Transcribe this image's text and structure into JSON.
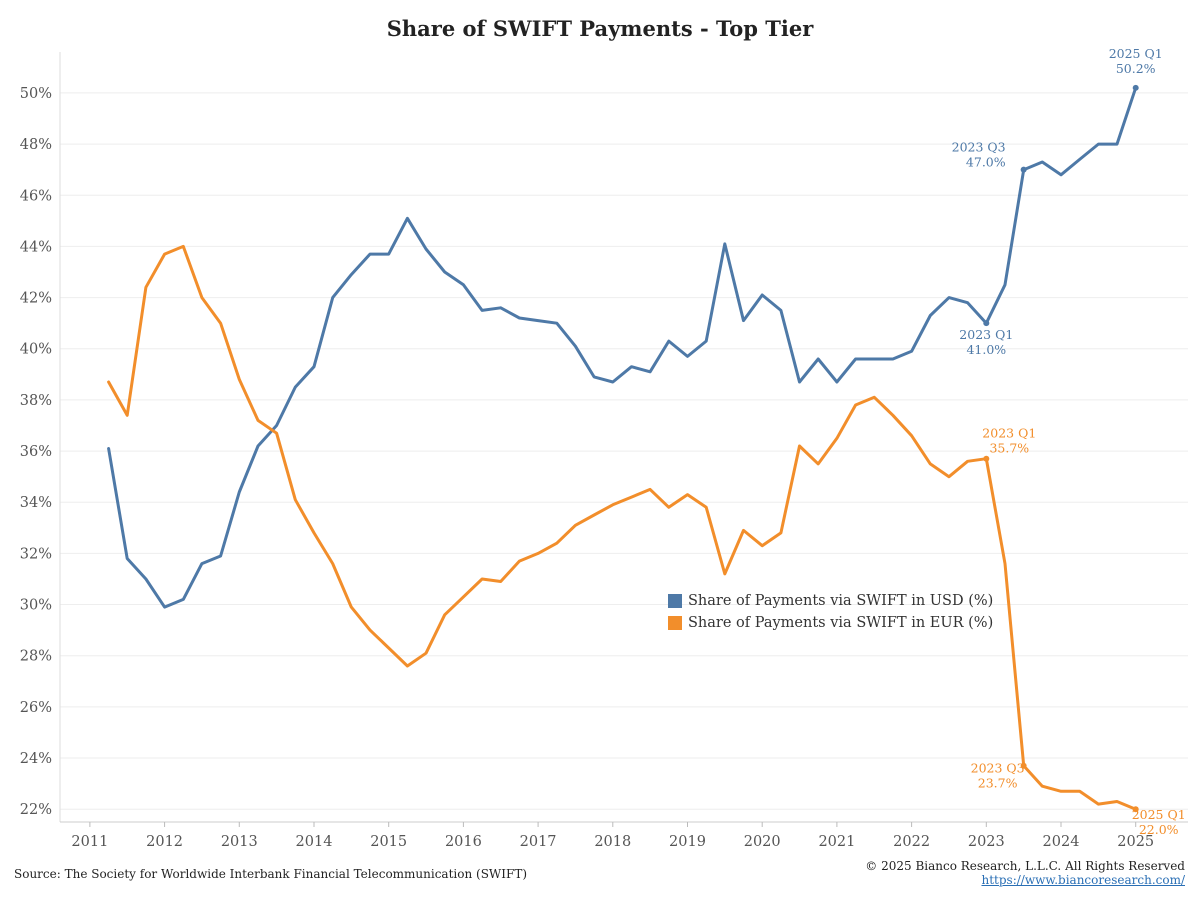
{
  "title": "Share of SWIFT Payments - Top Tier",
  "source": "Source: The Society for Worldwide Interbank Financial Telecommunication (SWIFT)",
  "copyright": "© 2025 Bianco Research, L.L.C. All Rights Reserved",
  "url": "https://www.biancoresearch.com/",
  "colors": {
    "usd": "#4e79a7",
    "eur": "#f28e2b"
  },
  "chart_data": {
    "type": "line",
    "title": "Share of SWIFT Payments - Top Tier",
    "xlabel": "",
    "ylabel": "",
    "x_ticks": [
      "2011",
      "2012",
      "2013",
      "2014",
      "2015",
      "2016",
      "2017",
      "2018",
      "2019",
      "2020",
      "2021",
      "2022",
      "2023",
      "2024",
      "2025"
    ],
    "y_ticks": [
      "22%",
      "24%",
      "26%",
      "28%",
      "30%",
      "32%",
      "34%",
      "36%",
      "38%",
      "40%",
      "42%",
      "44%",
      "46%",
      "48%",
      "50%"
    ],
    "xlim": [
      2010.6,
      2025.7
    ],
    "ylim": [
      21.5,
      51.6
    ],
    "grid": "horizontal",
    "legend_position": "center-right",
    "x": [
      2011.25,
      2011.5,
      2011.75,
      2012.0,
      2012.25,
      2012.5,
      2012.75,
      2013.0,
      2013.25,
      2013.5,
      2013.75,
      2014.0,
      2014.25,
      2014.5,
      2014.75,
      2015.0,
      2015.25,
      2015.5,
      2015.75,
      2016.0,
      2016.25,
      2016.5,
      2016.75,
      2017.0,
      2017.25,
      2017.5,
      2017.75,
      2018.0,
      2018.25,
      2018.5,
      2018.75,
      2019.0,
      2019.25,
      2019.5,
      2019.75,
      2020.0,
      2020.25,
      2020.5,
      2020.75,
      2021.0,
      2021.25,
      2021.5,
      2021.75,
      2022.0,
      2022.25,
      2022.5,
      2022.75,
      2023.0,
      2023.25,
      2023.5,
      2023.75,
      2024.0,
      2024.25,
      2024.5,
      2024.75,
      2025.0
    ],
    "series": [
      {
        "name": "Share of Payments via SWIFT in USD (%)",
        "color": "#4e79a7",
        "values": [
          36.1,
          31.8,
          31.0,
          29.9,
          30.2,
          31.6,
          31.9,
          34.4,
          36.2,
          37.0,
          38.5,
          39.3,
          42.0,
          42.9,
          43.7,
          43.7,
          45.1,
          43.9,
          43.0,
          42.5,
          41.5,
          41.6,
          41.2,
          41.1,
          41.0,
          40.1,
          38.9,
          38.7,
          39.3,
          39.1,
          40.3,
          39.7,
          40.3,
          44.1,
          41.1,
          42.1,
          41.5,
          38.7,
          39.6,
          38.7,
          39.6,
          39.6,
          39.6,
          39.9,
          41.3,
          42.0,
          41.8,
          41.0,
          42.5,
          47.0,
          47.3,
          46.8,
          47.4,
          48.0,
          48.0,
          50.2
        ]
      },
      {
        "name": "Share of Payments via SWIFT in EUR (%)",
        "color": "#f28e2b",
        "values": [
          38.7,
          37.4,
          42.4,
          43.7,
          44.0,
          42.0,
          41.0,
          38.8,
          37.2,
          36.7,
          34.1,
          32.8,
          31.6,
          29.9,
          29.0,
          28.3,
          27.6,
          28.1,
          29.6,
          30.3,
          31.0,
          30.9,
          31.7,
          32.0,
          32.4,
          33.1,
          33.5,
          33.9,
          34.2,
          34.5,
          33.8,
          34.3,
          33.8,
          31.2,
          32.9,
          32.3,
          32.8,
          36.2,
          35.5,
          36.5,
          37.8,
          38.1,
          37.4,
          36.6,
          35.5,
          35.0,
          35.6,
          35.7,
          31.6,
          23.7,
          22.9,
          22.7,
          22.7,
          22.2,
          22.3,
          22.0
        ]
      }
    ],
    "annotations": [
      {
        "series": 0,
        "x": 2023.0,
        "lines": [
          "2023 Q1",
          "41.0%"
        ],
        "position": "below"
      },
      {
        "series": 0,
        "x": 2023.5,
        "lines": [
          "2023 Q3",
          "47.0%"
        ],
        "position": "left"
      },
      {
        "series": 0,
        "x": 2025.0,
        "lines": [
          "2025 Q1",
          "50.2%"
        ],
        "position": "above"
      },
      {
        "series": 1,
        "x": 2023.0,
        "lines": [
          "2023 Q1",
          "35.7%"
        ],
        "position": "above-right"
      },
      {
        "series": 1,
        "x": 2023.5,
        "lines": [
          "2023 Q3",
          "23.7%"
        ],
        "position": "below-left"
      },
      {
        "series": 1,
        "x": 2025.0,
        "lines": [
          "2025 Q1",
          "22.0%"
        ],
        "position": "below-right"
      }
    ]
  }
}
